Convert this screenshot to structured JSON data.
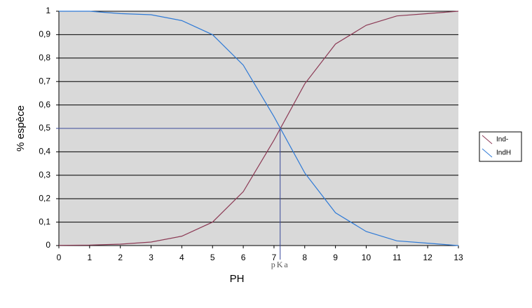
{
  "chart_data": {
    "type": "line",
    "x_label": "PH",
    "y_label": "% espèce",
    "x": [
      0,
      1,
      2,
      3,
      4,
      5,
      6,
      7,
      8,
      9,
      10,
      11,
      12,
      13
    ],
    "series": [
      {
        "name": "Ind-",
        "color": "#8c3a55",
        "values": [
          0.001,
          0.002,
          0.006,
          0.015,
          0.04,
          0.1,
          0.23,
          0.45,
          0.69,
          0.86,
          0.94,
          0.98,
          0.99,
          1.0
        ]
      },
      {
        "name": "IndH",
        "color": "#2f7ad6",
        "values": [
          1.0,
          1.0,
          0.99,
          0.985,
          0.96,
          0.9,
          0.77,
          0.55,
          0.31,
          0.14,
          0.06,
          0.02,
          0.01,
          0.0
        ]
      }
    ],
    "annotations": [
      {
        "text": "pKa",
        "x": 7.2,
        "y": 0.5
      }
    ],
    "xlim": [
      0,
      13
    ],
    "xticks": [
      0,
      1,
      2,
      3,
      4,
      5,
      6,
      7,
      8,
      9,
      10,
      11,
      12,
      13
    ],
    "ylim": [
      0,
      1
    ],
    "yticks": [
      0,
      {
        "value": 0.1,
        "label": "0,1"
      },
      {
        "value": 0.2,
        "label": "0,2"
      },
      {
        "value": 0.3,
        "label": "0,3"
      },
      {
        "value": 0.4,
        "label": "0,4"
      },
      {
        "value": 0.5,
        "label": "0,5"
      },
      {
        "value": 0.6,
        "label": "0,6"
      },
      {
        "value": 0.7,
        "label": "0,7"
      },
      {
        "value": 0.8,
        "label": "0,8"
      },
      {
        "value": 0.9,
        "label": "0,9"
      },
      1
    ],
    "grid": true,
    "legend": "right",
    "plot_background": "#d9d9d9"
  }
}
